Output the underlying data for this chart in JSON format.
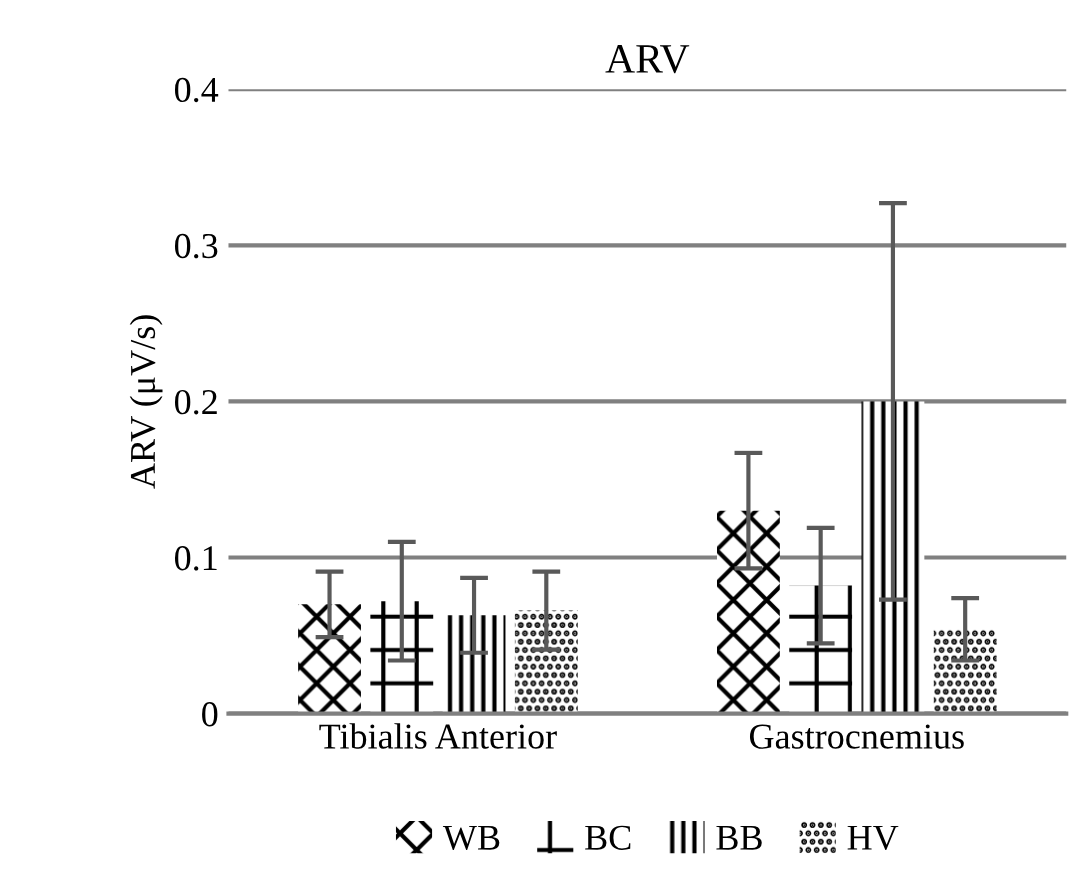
{
  "chart_data": {
    "type": "bar",
    "title": "ARV",
    "ylabel": "ARV (μV/s)",
    "categories": [
      "Tibialis Anterior",
      "Gastrocnemius"
    ],
    "series": [
      {
        "name": "WB",
        "color": "#000000",
        "values": [
          0.07,
          0.13
        ],
        "errors": [
          0.021,
          0.037
        ]
      },
      {
        "name": "BC",
        "color": "#000000",
        "values": [
          0.072,
          0.082
        ],
        "errors": [
          0.038,
          0.037
        ]
      },
      {
        "name": "BB",
        "color": "#000000",
        "values": [
          0.063,
          0.2
        ],
        "errors": [
          0.024,
          0.127
        ]
      },
      {
        "name": "HV",
        "color": "#000000",
        "values": [
          0.066,
          0.054
        ],
        "errors": [
          0.025,
          0.02
        ]
      }
    ],
    "ylim": [
      0,
      0.4
    ],
    "yticks": [
      0,
      0.1,
      0.2,
      0.3,
      0.4
    ],
    "grid": "y",
    "legend": "bottom"
  }
}
